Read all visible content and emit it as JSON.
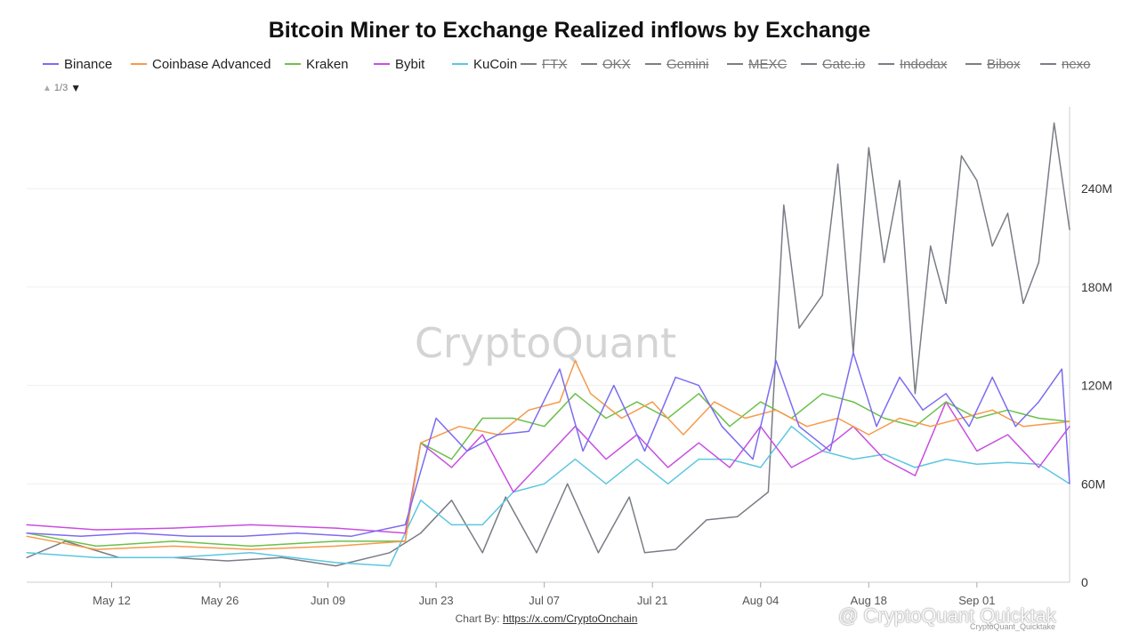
{
  "chart_data": {
    "type": "line",
    "title": "Bitcoin Miner to Exchange Realized inflows by Exchange",
    "x_tick_labels": [
      "May 12",
      "May 26",
      "Jun 09",
      "Jun 23",
      "Jul 07",
      "Jul 21",
      "Aug 04",
      "Aug 18",
      "Sep 01"
    ],
    "y_tick_labels": [
      "0",
      "60M",
      "120M",
      "180M",
      "240M"
    ],
    "ylim": [
      0,
      290
    ],
    "y_unit": "M",
    "x_range": [
      "2024-05-01",
      "2024-09-13"
    ],
    "grid": "horizontal",
    "legend_position": "top",
    "legend_page": "1/3",
    "watermark": "CryptoQuant",
    "series": [
      {
        "name": "Binance",
        "color": "#7b6cf0",
        "visible": true
      },
      {
        "name": "Coinbase Advanced",
        "color": "#f59a4a",
        "visible": true
      },
      {
        "name": "Kraken",
        "color": "#6cc04a",
        "visible": true
      },
      {
        "name": "Bybit",
        "color": "#c84ee0",
        "visible": true
      },
      {
        "name": "KuCoin",
        "color": "#5cc6e0",
        "visible": true
      },
      {
        "name": "FTX",
        "color": "#7a7d86",
        "visible": false
      },
      {
        "name": "OKX",
        "color": "#7a7d86",
        "visible": false
      },
      {
        "name": "Gemini",
        "color": "#7a7d86",
        "visible": false
      },
      {
        "name": "MEXC",
        "color": "#7a7d86",
        "visible": false
      },
      {
        "name": "Gate.io",
        "color": "#7a7d86",
        "visible": false
      },
      {
        "name": "Indodax",
        "color": "#7a7d86",
        "visible": false
      },
      {
        "name": "Bibox",
        "color": "#7a7d86",
        "visible": false
      },
      {
        "name": "nexo",
        "color": "#7a7d86",
        "visible": false
      }
    ],
    "anchors_note": "",
    "data_points": {
      "OKX": [
        [
          "2024-05-01",
          15
        ],
        [
          "2024-05-06",
          25
        ],
        [
          "2024-05-13",
          15
        ],
        [
          "2024-05-20",
          15
        ],
        [
          "2024-05-27",
          13
        ],
        [
          "2024-06-03",
          15
        ],
        [
          "2024-06-10",
          10
        ],
        [
          "2024-06-17",
          18
        ],
        [
          "2024-06-21",
          30
        ],
        [
          "2024-06-25",
          50
        ],
        [
          "2024-06-29",
          18
        ],
        [
          "2024-07-02",
          52
        ],
        [
          "2024-07-06",
          18
        ],
        [
          "2024-07-10",
          60
        ],
        [
          "2024-07-14",
          18
        ],
        [
          "2024-07-18",
          52
        ],
        [
          "2024-07-20",
          18
        ],
        [
          "2024-07-24",
          20
        ],
        [
          "2024-07-28",
          38
        ],
        [
          "2024-08-01",
          40
        ],
        [
          "2024-08-05",
          55
        ],
        [
          "2024-08-07",
          230
        ],
        [
          "2024-08-09",
          155
        ],
        [
          "2024-08-12",
          175
        ],
        [
          "2024-08-14",
          255
        ],
        [
          "2024-08-16",
          140
        ],
        [
          "2024-08-18",
          265
        ],
        [
          "2024-08-20",
          195
        ],
        [
          "2024-08-22",
          245
        ],
        [
          "2024-08-24",
          115
        ],
        [
          "2024-08-26",
          205
        ],
        [
          "2024-08-28",
          170
        ],
        [
          "2024-08-30",
          260
        ],
        [
          "2024-09-01",
          245
        ],
        [
          "2024-09-03",
          205
        ],
        [
          "2024-09-05",
          225
        ],
        [
          "2024-09-07",
          170
        ],
        [
          "2024-09-09",
          195
        ],
        [
          "2024-09-11",
          280
        ],
        [
          "2024-09-13",
          215
        ]
      ],
      "Binance": [
        [
          "2024-05-01",
          30
        ],
        [
          "2024-05-08",
          28
        ],
        [
          "2024-05-15",
          30
        ],
        [
          "2024-05-22",
          28
        ],
        [
          "2024-05-29",
          28
        ],
        [
          "2024-06-05",
          30
        ],
        [
          "2024-06-12",
          28
        ],
        [
          "2024-06-19",
          35
        ],
        [
          "2024-06-23",
          100
        ],
        [
          "2024-06-27",
          80
        ],
        [
          "2024-07-01",
          90
        ],
        [
          "2024-07-05",
          92
        ],
        [
          "2024-07-09",
          130
        ],
        [
          "2024-07-12",
          80
        ],
        [
          "2024-07-16",
          120
        ],
        [
          "2024-07-20",
          80
        ],
        [
          "2024-07-24",
          125
        ],
        [
          "2024-07-27",
          120
        ],
        [
          "2024-07-30",
          95
        ],
        [
          "2024-08-03",
          75
        ],
        [
          "2024-08-06",
          135
        ],
        [
          "2024-08-09",
          95
        ],
        [
          "2024-08-13",
          80
        ],
        [
          "2024-08-16",
          140
        ],
        [
          "2024-08-19",
          95
        ],
        [
          "2024-08-22",
          125
        ],
        [
          "2024-08-25",
          105
        ],
        [
          "2024-08-28",
          115
        ],
        [
          "2024-08-31",
          95
        ],
        [
          "2024-09-03",
          125
        ],
        [
          "2024-09-06",
          95
        ],
        [
          "2024-09-09",
          110
        ],
        [
          "2024-09-12",
          130
        ],
        [
          "2024-09-13",
          60
        ]
      ],
      "Coinbase Advanced": [
        [
          "2024-05-01",
          28
        ],
        [
          "2024-05-10",
          20
        ],
        [
          "2024-05-20",
          22
        ],
        [
          "2024-05-30",
          20
        ],
        [
          "2024-06-10",
          22
        ],
        [
          "2024-06-19",
          25
        ],
        [
          "2024-06-21",
          85
        ],
        [
          "2024-06-26",
          95
        ],
        [
          "2024-07-01",
          90
        ],
        [
          "2024-07-05",
          105
        ],
        [
          "2024-07-09",
          110
        ],
        [
          "2024-07-11",
          135
        ],
        [
          "2024-07-13",
          115
        ],
        [
          "2024-07-17",
          100
        ],
        [
          "2024-07-21",
          110
        ],
        [
          "2024-07-25",
          90
        ],
        [
          "2024-07-29",
          110
        ],
        [
          "2024-08-02",
          100
        ],
        [
          "2024-08-06",
          105
        ],
        [
          "2024-08-10",
          95
        ],
        [
          "2024-08-14",
          100
        ],
        [
          "2024-08-18",
          90
        ],
        [
          "2024-08-22",
          100
        ],
        [
          "2024-08-26",
          95
        ],
        [
          "2024-08-30",
          100
        ],
        [
          "2024-09-03",
          105
        ],
        [
          "2024-09-07",
          95
        ],
        [
          "2024-09-13",
          98
        ]
      ],
      "Kraken": [
        [
          "2024-05-01",
          30
        ],
        [
          "2024-05-10",
          22
        ],
        [
          "2024-05-20",
          25
        ],
        [
          "2024-05-30",
          22
        ],
        [
          "2024-06-10",
          25
        ],
        [
          "2024-06-19",
          25
        ],
        [
          "2024-06-21",
          85
        ],
        [
          "2024-06-25",
          75
        ],
        [
          "2024-06-29",
          100
        ],
        [
          "2024-07-03",
          100
        ],
        [
          "2024-07-07",
          95
        ],
        [
          "2024-07-11",
          115
        ],
        [
          "2024-07-15",
          100
        ],
        [
          "2024-07-19",
          110
        ],
        [
          "2024-07-23",
          100
        ],
        [
          "2024-07-27",
          115
        ],
        [
          "2024-07-31",
          95
        ],
        [
          "2024-08-04",
          110
        ],
        [
          "2024-08-08",
          100
        ],
        [
          "2024-08-12",
          115
        ],
        [
          "2024-08-16",
          110
        ],
        [
          "2024-08-20",
          100
        ],
        [
          "2024-08-24",
          95
        ],
        [
          "2024-08-28",
          110
        ],
        [
          "2024-09-01",
          100
        ],
        [
          "2024-09-05",
          105
        ],
        [
          "2024-09-09",
          100
        ],
        [
          "2024-09-13",
          98
        ]
      ],
      "Bybit": [
        [
          "2024-05-01",
          35
        ],
        [
          "2024-05-10",
          32
        ],
        [
          "2024-05-20",
          33
        ],
        [
          "2024-05-30",
          35
        ],
        [
          "2024-06-10",
          33
        ],
        [
          "2024-06-19",
          30
        ],
        [
          "2024-06-21",
          85
        ],
        [
          "2024-06-25",
          70
        ],
        [
          "2024-06-29",
          90
        ],
        [
          "2024-07-03",
          55
        ],
        [
          "2024-07-07",
          75
        ],
        [
          "2024-07-11",
          95
        ],
        [
          "2024-07-15",
          75
        ],
        [
          "2024-07-19",
          90
        ],
        [
          "2024-07-23",
          70
        ],
        [
          "2024-07-27",
          85
        ],
        [
          "2024-07-31",
          70
        ],
        [
          "2024-08-04",
          95
        ],
        [
          "2024-08-08",
          70
        ],
        [
          "2024-08-12",
          80
        ],
        [
          "2024-08-16",
          95
        ],
        [
          "2024-08-20",
          75
        ],
        [
          "2024-08-24",
          65
        ],
        [
          "2024-08-28",
          110
        ],
        [
          "2024-09-01",
          80
        ],
        [
          "2024-09-05",
          90
        ],
        [
          "2024-09-09",
          70
        ],
        [
          "2024-09-13",
          95
        ]
      ],
      "KuCoin": [
        [
          "2024-05-01",
          18
        ],
        [
          "2024-05-10",
          15
        ],
        [
          "2024-05-20",
          15
        ],
        [
          "2024-05-30",
          18
        ],
        [
          "2024-06-10",
          12
        ],
        [
          "2024-06-17",
          10
        ],
        [
          "2024-06-21",
          50
        ],
        [
          "2024-06-25",
          35
        ],
        [
          "2024-06-29",
          35
        ],
        [
          "2024-07-03",
          55
        ],
        [
          "2024-07-07",
          60
        ],
        [
          "2024-07-11",
          75
        ],
        [
          "2024-07-15",
          60
        ],
        [
          "2024-07-19",
          75
        ],
        [
          "2024-07-23",
          60
        ],
        [
          "2024-07-27",
          75
        ],
        [
          "2024-07-31",
          75
        ],
        [
          "2024-08-04",
          70
        ],
        [
          "2024-08-08",
          95
        ],
        [
          "2024-08-12",
          80
        ],
        [
          "2024-08-16",
          75
        ],
        [
          "2024-08-20",
          78
        ],
        [
          "2024-08-24",
          70
        ],
        [
          "2024-08-28",
          75
        ],
        [
          "2024-09-01",
          72
        ],
        [
          "2024-09-05",
          73
        ],
        [
          "2024-09-09",
          72
        ],
        [
          "2024-09-13",
          60
        ]
      ]
    }
  },
  "credit": {
    "prefix": "Chart By: ",
    "link": "https://x.com/CryptoOnchain"
  },
  "brand": {
    "text": "@ CryptoQuant Quicktak",
    "sub": "CryptoQuant_Quicktake"
  },
  "pager": {
    "text": "1/3"
  }
}
